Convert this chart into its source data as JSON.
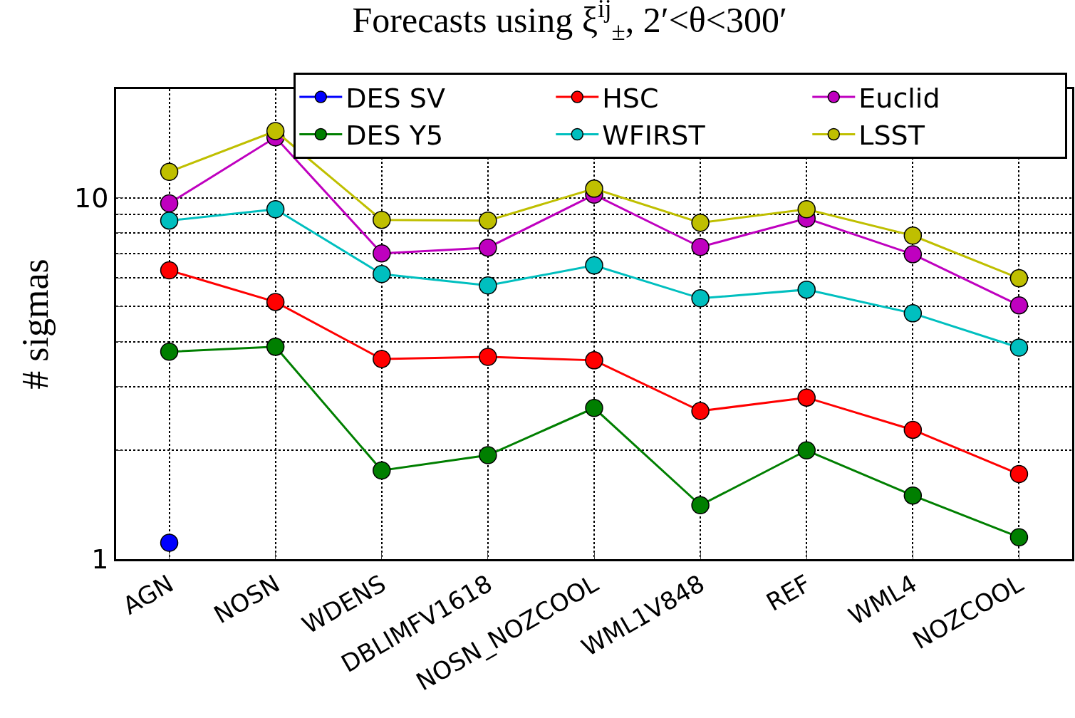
{
  "chart_data": {
    "type": "line",
    "title": "Forecasts using ξ$^{ij}$$_{±}$, 2′<θ<300′",
    "ylabel": "# sigmas",
    "categories": [
      "AGN",
      "NOSN",
      "WDENS",
      "DBLIMFV1618",
      "NOSN_NOZCOOL",
      "WML1V848",
      "REF",
      "WML4",
      "NOZCOOL"
    ],
    "series": [
      {
        "name": "DES SV",
        "color": "#0000ff",
        "values": [
          1.11,
          null,
          null,
          null,
          null,
          null,
          null,
          null,
          null
        ]
      },
      {
        "name": "DES Y5",
        "color": "#007f00",
        "values": [
          3.75,
          3.87,
          1.76,
          1.94,
          2.62,
          1.41,
          2.0,
          1.5,
          1.15
        ]
      },
      {
        "name": "HSC",
        "color": "#ff0000",
        "values": [
          6.3,
          5.15,
          3.58,
          3.63,
          3.55,
          2.57,
          2.8,
          2.28,
          1.72
        ]
      },
      {
        "name": "WFIRST",
        "color": "#00bfbf",
        "values": [
          8.65,
          9.3,
          6.15,
          5.72,
          6.5,
          5.27,
          5.57,
          4.79,
          3.85
        ]
      },
      {
        "name": "Euclid",
        "color": "#bf00bf",
        "values": [
          9.65,
          14.7,
          7.02,
          7.28,
          10.2,
          7.31,
          8.77,
          6.98,
          5.04
        ]
      },
      {
        "name": "LSST",
        "color": "#bfbf00",
        "values": [
          11.8,
          15.3,
          8.69,
          8.65,
          10.6,
          8.53,
          9.3,
          7.86,
          5.99
        ]
      }
    ],
    "log": "y",
    "ylim": [
      1,
      20
    ],
    "yticks": [
      1,
      {
        "value": 2,
        "label": null
      },
      {
        "value": 3,
        "label": null
      },
      {
        "value": 4,
        "label": null
      },
      {
        "value": 5,
        "label": null
      },
      {
        "value": 6,
        "label": null
      },
      {
        "value": 7,
        "label": null
      },
      {
        "value": 8,
        "label": null
      },
      {
        "value": 9,
        "label": null
      },
      10,
      {
        "value": 20,
        "label": null
      }
    ],
    "grid": true,
    "legend": "top right",
    "marker": "circle",
    "line_style": "solid"
  }
}
